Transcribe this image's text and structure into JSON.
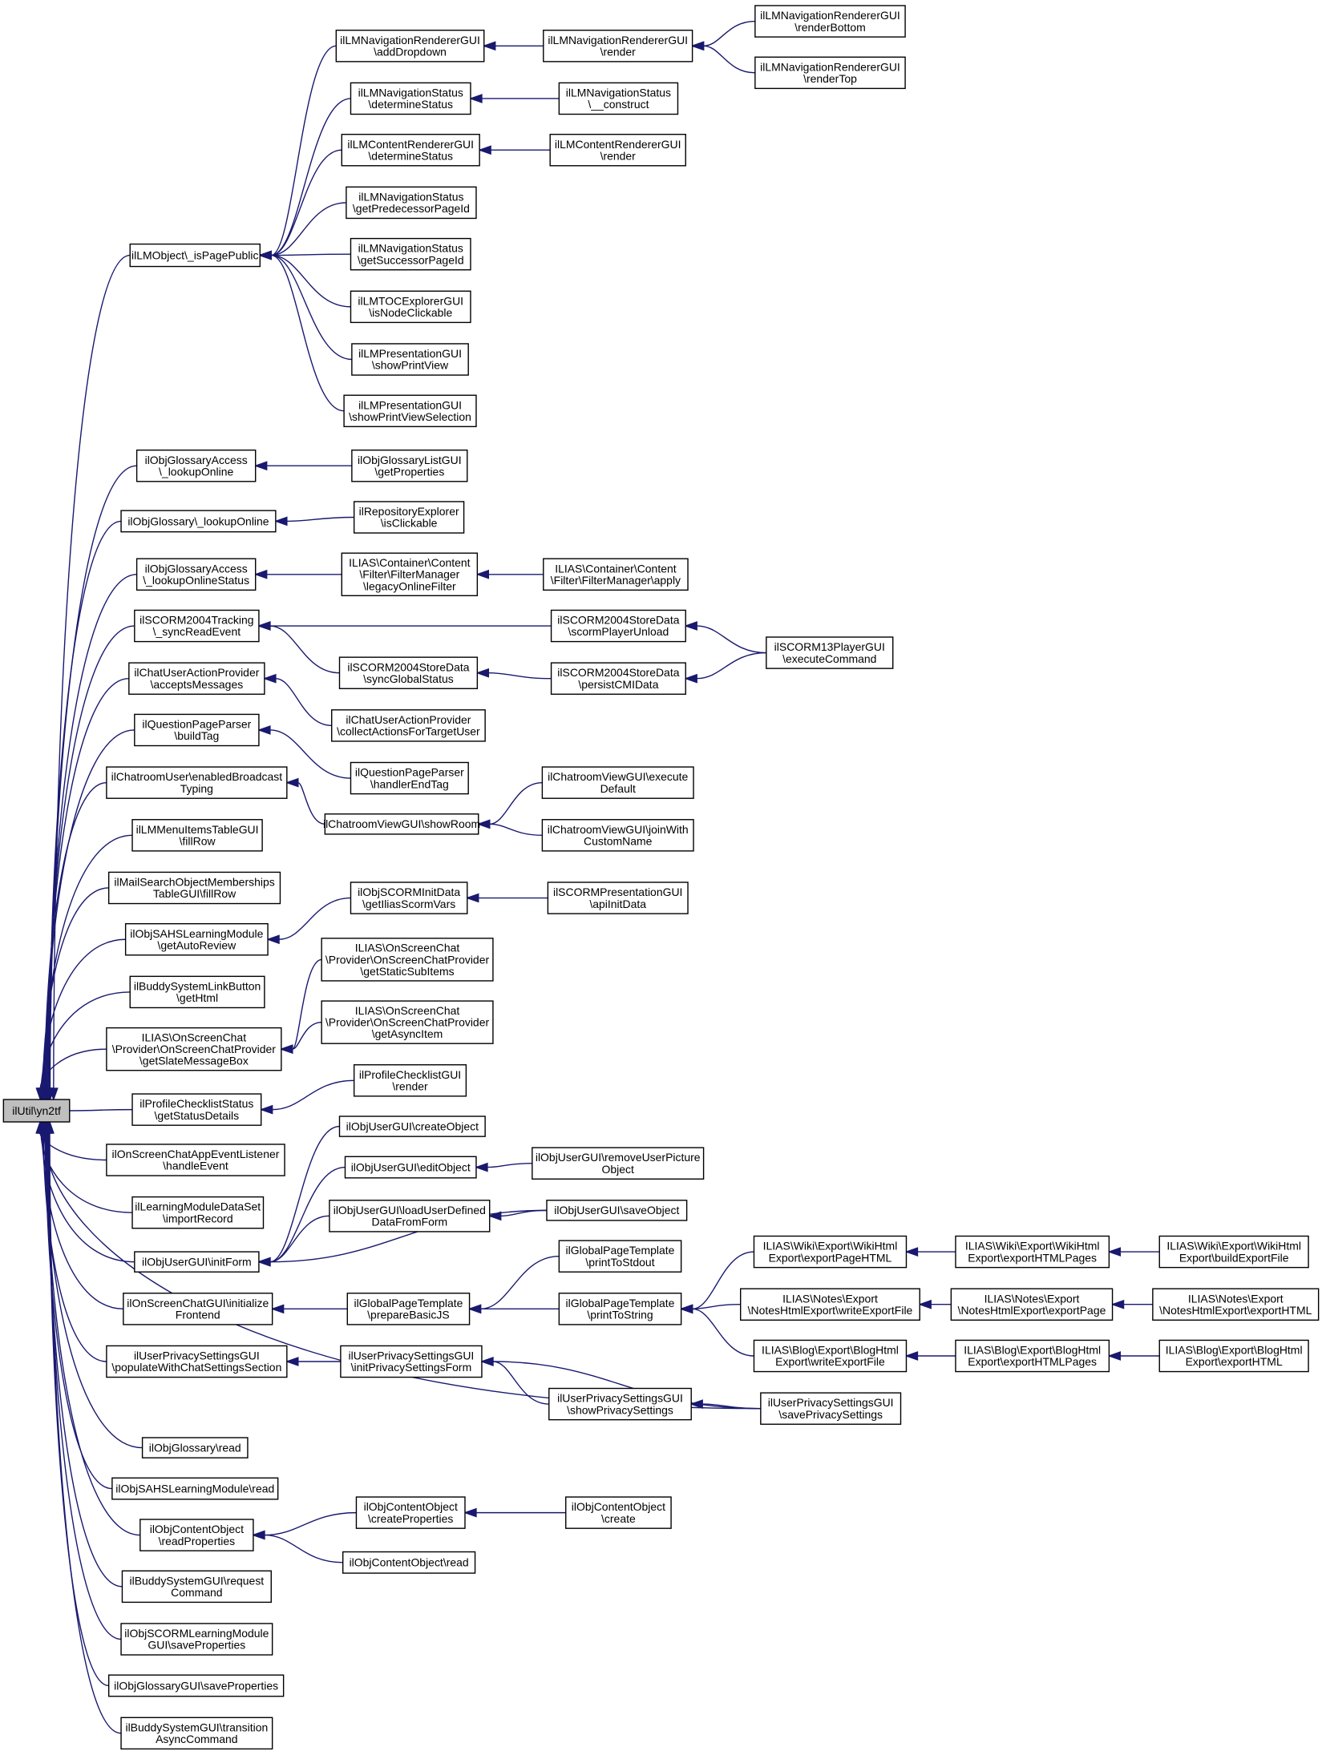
{
  "graph_type": "caller-graph",
  "colors": {
    "edge": "#191970",
    "root_fill": "#bfbfbf",
    "node_fill": "#ffffff",
    "node_border": "#000000"
  },
  "nodes": [
    {
      "id": "root",
      "lines": [
        "ilUtil\\yn2tf"
      ],
      "root": true
    },
    {
      "id": "isPagePublic",
      "lines": [
        "ilLMObject\\_isPagePublic"
      ]
    },
    {
      "id": "addDropdown",
      "lines": [
        "ilLMNavigationRendererGUI",
        "\\addDropdown"
      ]
    },
    {
      "id": "navDetermine",
      "lines": [
        "ilLMNavigationStatus",
        "\\determineStatus"
      ]
    },
    {
      "id": "contentDetermine",
      "lines": [
        "ilLMContentRendererGUI",
        "\\determineStatus"
      ]
    },
    {
      "id": "getPred",
      "lines": [
        "ilLMNavigationStatus",
        "\\getPredecessorPageId"
      ]
    },
    {
      "id": "getSucc",
      "lines": [
        "ilLMNavigationStatus",
        "\\getSuccessorPageId"
      ]
    },
    {
      "id": "isNodeClickable",
      "lines": [
        "ilLMTOCExplorerGUI",
        "\\isNodeClickable"
      ]
    },
    {
      "id": "showPrintView",
      "lines": [
        "ilLMPresentationGUI",
        "\\showPrintView"
      ]
    },
    {
      "id": "showPrintViewSel",
      "lines": [
        "ilLMPresentationGUI",
        "\\showPrintViewSelection"
      ]
    },
    {
      "id": "navRender",
      "lines": [
        "ilLMNavigationRendererGUI",
        "\\render"
      ]
    },
    {
      "id": "construct",
      "lines": [
        "ilLMNavigationStatus",
        "\\__construct"
      ]
    },
    {
      "id": "contentRender",
      "lines": [
        "ilLMContentRendererGUI",
        "\\render"
      ]
    },
    {
      "id": "renderBottom",
      "lines": [
        "ilLMNavigationRendererGUI",
        "\\renderBottom"
      ]
    },
    {
      "id": "renderTop",
      "lines": [
        "ilLMNavigationRendererGUI",
        "\\renderTop"
      ]
    },
    {
      "id": "glossAccessLookup",
      "lines": [
        "ilObjGlossaryAccess",
        "\\_lookupOnline"
      ]
    },
    {
      "id": "glossLookup",
      "lines": [
        "ilObjGlossary\\_lookupOnline"
      ]
    },
    {
      "id": "glossLookupStatus",
      "lines": [
        "ilObjGlossaryAccess",
        "\\_lookupOnlineStatus"
      ]
    },
    {
      "id": "syncReadEvent",
      "lines": [
        "ilSCORM2004Tracking",
        "\\_syncReadEvent"
      ]
    },
    {
      "id": "acceptsMessages",
      "lines": [
        "ilChatUserActionProvider",
        "\\acceptsMessages"
      ]
    },
    {
      "id": "buildTag",
      "lines": [
        "ilQuestionPageParser",
        "\\buildTag"
      ]
    },
    {
      "id": "enabledBroadcast",
      "lines": [
        "ilChatroomUser\\enabledBroadcast",
        "Typing"
      ]
    },
    {
      "id": "menuFillRow",
      "lines": [
        "ilLMMenuItemsTableGUI",
        "\\fillRow"
      ]
    },
    {
      "id": "mailFillRow",
      "lines": [
        "ilMailSearchObjectMemberships",
        "TableGUI\\fillRow"
      ]
    },
    {
      "id": "getAutoReview",
      "lines": [
        "ilObjSAHSLearningModule",
        "\\getAutoReview"
      ]
    },
    {
      "id": "buddyGetHtml",
      "lines": [
        "ilBuddySystemLinkButton",
        "\\getHtml"
      ]
    },
    {
      "id": "slateMessageBox",
      "lines": [
        "ILIAS\\OnScreenChat",
        "\\Provider\\OnScreenChatProvider",
        "\\getSlateMessageBox"
      ]
    },
    {
      "id": "statusDetails",
      "lines": [
        "ilProfileChecklistStatus",
        "\\getStatusDetails"
      ]
    },
    {
      "id": "handleEvent",
      "lines": [
        "ilOnScreenChatAppEventListener",
        "\\handleEvent"
      ]
    },
    {
      "id": "importRecord",
      "lines": [
        "ilLearningModuleDataSet",
        "\\importRecord"
      ]
    },
    {
      "id": "initForm",
      "lines": [
        "ilObjUserGUI\\initForm"
      ]
    },
    {
      "id": "initFrontend",
      "lines": [
        "ilOnScreenChatGUI\\initialize",
        "Frontend"
      ]
    },
    {
      "id": "populateChat",
      "lines": [
        "ilUserPrivacySettingsGUI",
        "\\populateWithChatSettingsSection"
      ]
    },
    {
      "id": "glossRead",
      "lines": [
        "ilObjGlossary\\read"
      ]
    },
    {
      "id": "sahsRead",
      "lines": [
        "ilObjSAHSLearningModule\\read"
      ]
    },
    {
      "id": "readProperties",
      "lines": [
        "ilObjContentObject",
        "\\readProperties"
      ]
    },
    {
      "id": "requestCommand",
      "lines": [
        "ilBuddySystemGUI\\request",
        "Command"
      ]
    },
    {
      "id": "scormSaveProps",
      "lines": [
        "ilObjSCORMLearningModule",
        "GUI\\saveProperties"
      ]
    },
    {
      "id": "glossSaveProps",
      "lines": [
        "ilObjGlossaryGUI\\saveProperties"
      ]
    },
    {
      "id": "transitionAsync",
      "lines": [
        "ilBuddySystemGUI\\transition",
        "AsyncCommand"
      ]
    },
    {
      "id": "glossListProps",
      "lines": [
        "ilObjGlossaryListGUI",
        "\\getProperties"
      ]
    },
    {
      "id": "repoClickable",
      "lines": [
        "ilRepositoryExplorer",
        "\\isClickable"
      ]
    },
    {
      "id": "legacyFilter",
      "lines": [
        "ILIAS\\Container\\Content",
        "\\Filter\\FilterManager",
        "\\legacyOnlineFilter"
      ]
    },
    {
      "id": "syncGlobal",
      "lines": [
        "ilSCORM2004StoreData",
        "\\syncGlobalStatus"
      ]
    },
    {
      "id": "collectActions",
      "lines": [
        "ilChatUserActionProvider",
        "\\collectActionsForTargetUser"
      ]
    },
    {
      "id": "handlerEndTag",
      "lines": [
        "ilQuestionPageParser",
        "\\handlerEndTag"
      ]
    },
    {
      "id": "showRoom",
      "lines": [
        "ilChatroomViewGUI\\showRoom"
      ]
    },
    {
      "id": "scormVars",
      "lines": [
        "ilObjSCORMInitData",
        "\\getIliasScormVars"
      ]
    },
    {
      "id": "staticSubItems",
      "lines": [
        "ILIAS\\OnScreenChat",
        "\\Provider\\OnScreenChatProvider",
        "\\getStaticSubItems"
      ]
    },
    {
      "id": "asyncItem",
      "lines": [
        "ILIAS\\OnScreenChat",
        "\\Provider\\OnScreenChatProvider",
        "\\getAsyncItem"
      ]
    },
    {
      "id": "profileRender",
      "lines": [
        "ilProfileChecklistGUI",
        "\\render"
      ]
    },
    {
      "id": "createObject",
      "lines": [
        "ilObjUserGUI\\createObject"
      ]
    },
    {
      "id": "editObject",
      "lines": [
        "ilObjUserGUI\\editObject"
      ]
    },
    {
      "id": "loadUserDefined",
      "lines": [
        "ilObjUserGUI\\loadUserDefined",
        "DataFromForm"
      ]
    },
    {
      "id": "prepareBasicJS",
      "lines": [
        "ilGlobalPageTemplate",
        "\\prepareBasicJS"
      ]
    },
    {
      "id": "initPrivacy",
      "lines": [
        "ilUserPrivacySettingsGUI",
        "\\initPrivacySettingsForm"
      ]
    },
    {
      "id": "createProps",
      "lines": [
        "ilObjContentObject",
        "\\createProperties"
      ]
    },
    {
      "id": "contentObjRead",
      "lines": [
        "ilObjContentObject\\read"
      ]
    },
    {
      "id": "filterApply",
      "lines": [
        "ILIAS\\Container\\Content",
        "\\Filter\\FilterManager\\apply"
      ]
    },
    {
      "id": "playerUnload",
      "lines": [
        "ilSCORM2004StoreData",
        "\\scormPlayerUnload"
      ]
    },
    {
      "id": "persistCMI",
      "lines": [
        "ilSCORM2004StoreData",
        "\\persistCMIData"
      ]
    },
    {
      "id": "executeDefault",
      "lines": [
        "ilChatroomViewGUI\\execute",
        "Default"
      ]
    },
    {
      "id": "joinWith",
      "lines": [
        "ilChatroomViewGUI\\joinWith",
        "CustomName"
      ]
    },
    {
      "id": "apiInitData",
      "lines": [
        "ilSCORMPresentationGUI",
        "\\apiInitData"
      ]
    },
    {
      "id": "removePicture",
      "lines": [
        "ilObjUserGUI\\removeUserPicture",
        "Object"
      ]
    },
    {
      "id": "saveObject",
      "lines": [
        "ilObjUserGUI\\saveObject"
      ]
    },
    {
      "id": "printToStdout",
      "lines": [
        "ilGlobalPageTemplate",
        "\\printToStdout"
      ]
    },
    {
      "id": "printToString",
      "lines": [
        "ilGlobalPageTemplate",
        "\\printToString"
      ]
    },
    {
      "id": "showPrivacy",
      "lines": [
        "ilUserPrivacySettingsGUI",
        "\\showPrivacySettings"
      ]
    },
    {
      "id": "contentCreate",
      "lines": [
        "ilObjContentObject",
        "\\create"
      ]
    },
    {
      "id": "executeCommand",
      "lines": [
        "ilSCORM13PlayerGUI",
        "\\executeCommand"
      ]
    },
    {
      "id": "wikiExportPage",
      "lines": [
        "ILIAS\\Wiki\\Export\\WikiHtml",
        "Export\\exportPageHTML"
      ]
    },
    {
      "id": "notesWrite",
      "lines": [
        "ILIAS\\Notes\\Export",
        "\\NotesHtmlExport\\writeExportFile"
      ]
    },
    {
      "id": "blogWrite",
      "lines": [
        "ILIAS\\Blog\\Export\\BlogHtml",
        "Export\\writeExportFile"
      ]
    },
    {
      "id": "savePrivacy",
      "lines": [
        "ilUserPrivacySettingsGUI",
        "\\savePrivacySettings"
      ]
    },
    {
      "id": "wikiPages",
      "lines": [
        "ILIAS\\Wiki\\Export\\WikiHtml",
        "Export\\exportHTMLPages"
      ]
    },
    {
      "id": "notesExportPage",
      "lines": [
        "ILIAS\\Notes\\Export",
        "\\NotesHtmlExport\\exportPage"
      ]
    },
    {
      "id": "blogPages",
      "lines": [
        "ILIAS\\Blog\\Export\\BlogHtml",
        "Export\\exportHTMLPages"
      ]
    },
    {
      "id": "wikiBuild",
      "lines": [
        "ILIAS\\Wiki\\Export\\WikiHtml",
        "Export\\buildExportFile"
      ]
    },
    {
      "id": "notesExportHTML",
      "lines": [
        "ILIAS\\Notes\\Export",
        "\\NotesHtmlExport\\exportHTML"
      ]
    },
    {
      "id": "blogExportHTML",
      "lines": [
        "ILIAS\\Blog\\Export\\BlogHtml",
        "Export\\exportHTML"
      ]
    }
  ],
  "edges": [
    [
      "isPagePublic",
      "root"
    ],
    [
      "glossAccessLookup",
      "root"
    ],
    [
      "glossLookup",
      "root"
    ],
    [
      "glossLookupStatus",
      "root"
    ],
    [
      "syncReadEvent",
      "root"
    ],
    [
      "acceptsMessages",
      "root"
    ],
    [
      "buildTag",
      "root"
    ],
    [
      "enabledBroadcast",
      "root"
    ],
    [
      "menuFillRow",
      "root"
    ],
    [
      "mailFillRow",
      "root"
    ],
    [
      "getAutoReview",
      "root"
    ],
    [
      "buddyGetHtml",
      "root"
    ],
    [
      "slateMessageBox",
      "root"
    ],
    [
      "statusDetails",
      "root"
    ],
    [
      "handleEvent",
      "root"
    ],
    [
      "importRecord",
      "root"
    ],
    [
      "initForm",
      "root"
    ],
    [
      "initFrontend",
      "root"
    ],
    [
      "populateChat",
      "root"
    ],
    [
      "savePrivacy",
      "root"
    ],
    [
      "glossRead",
      "root"
    ],
    [
      "sahsRead",
      "root"
    ],
    [
      "readProperties",
      "root"
    ],
    [
      "requestCommand",
      "root"
    ],
    [
      "scormSaveProps",
      "root"
    ],
    [
      "glossSaveProps",
      "root"
    ],
    [
      "transitionAsync",
      "root"
    ],
    [
      "addDropdown",
      "isPagePublic"
    ],
    [
      "navDetermine",
      "isPagePublic"
    ],
    [
      "contentDetermine",
      "isPagePublic"
    ],
    [
      "getPred",
      "isPagePublic"
    ],
    [
      "getSucc",
      "isPagePublic"
    ],
    [
      "isNodeClickable",
      "isPagePublic"
    ],
    [
      "showPrintView",
      "isPagePublic"
    ],
    [
      "showPrintViewSel",
      "isPagePublic"
    ],
    [
      "navRender",
      "addDropdown"
    ],
    [
      "renderBottom",
      "navRender"
    ],
    [
      "renderTop",
      "navRender"
    ],
    [
      "construct",
      "navDetermine"
    ],
    [
      "contentRender",
      "contentDetermine"
    ],
    [
      "glossListProps",
      "glossAccessLookup"
    ],
    [
      "repoClickable",
      "glossLookup"
    ],
    [
      "legacyFilter",
      "glossLookupStatus"
    ],
    [
      "filterApply",
      "legacyFilter"
    ],
    [
      "playerUnload",
      "syncReadEvent"
    ],
    [
      "syncGlobal",
      "syncReadEvent"
    ],
    [
      "persistCMI",
      "syncGlobal"
    ],
    [
      "executeCommand",
      "playerUnload"
    ],
    [
      "executeCommand",
      "persistCMI"
    ],
    [
      "collectActions",
      "acceptsMessages"
    ],
    [
      "handlerEndTag",
      "buildTag"
    ],
    [
      "showRoom",
      "enabledBroadcast"
    ],
    [
      "executeDefault",
      "showRoom"
    ],
    [
      "joinWith",
      "showRoom"
    ],
    [
      "scormVars",
      "getAutoReview"
    ],
    [
      "apiInitData",
      "scormVars"
    ],
    [
      "staticSubItems",
      "slateMessageBox"
    ],
    [
      "asyncItem",
      "slateMessageBox"
    ],
    [
      "profileRender",
      "statusDetails"
    ],
    [
      "createObject",
      "initForm"
    ],
    [
      "editObject",
      "initForm"
    ],
    [
      "loadUserDefined",
      "initForm"
    ],
    [
      "saveObject",
      "initForm"
    ],
    [
      "removePicture",
      "editObject"
    ],
    [
      "saveObject",
      "loadUserDefined"
    ],
    [
      "prepareBasicJS",
      "initFrontend"
    ],
    [
      "printToStdout",
      "prepareBasicJS"
    ],
    [
      "printToString",
      "prepareBasicJS"
    ],
    [
      "wikiExportPage",
      "printToString"
    ],
    [
      "notesWrite",
      "printToString"
    ],
    [
      "blogWrite",
      "printToString"
    ],
    [
      "wikiPages",
      "wikiExportPage"
    ],
    [
      "wikiBuild",
      "wikiPages"
    ],
    [
      "notesExportPage",
      "notesWrite"
    ],
    [
      "notesExportHTML",
      "notesExportPage"
    ],
    [
      "blogPages",
      "blogWrite"
    ],
    [
      "blogExportHTML",
      "blogPages"
    ],
    [
      "initPrivacy",
      "populateChat"
    ],
    [
      "showPrivacy",
      "initPrivacy"
    ],
    [
      "savePrivacy",
      "initPrivacy"
    ],
    [
      "savePrivacy",
      "showPrivacy"
    ],
    [
      "createProps",
      "readProperties"
    ],
    [
      "contentCreate",
      "createProps"
    ],
    [
      "contentObjRead",
      "readProperties"
    ]
  ]
}
